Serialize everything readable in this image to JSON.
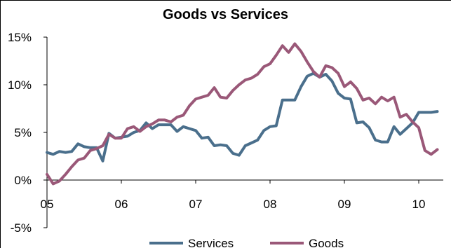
{
  "chart_data": {
    "type": "line",
    "title": "Goods vs Services",
    "xlabel": "",
    "ylabel": "",
    "ylim": [
      -5,
      15
    ],
    "y_ticks": [
      "-5%",
      "0%",
      "5%",
      "10%",
      "15%"
    ],
    "y_tick_values": [
      -5,
      0,
      5,
      10,
      15
    ],
    "x_ticks": [
      "05",
      "06",
      "07",
      "08",
      "09",
      "10"
    ],
    "x_tick_values": [
      2005,
      2006,
      2007,
      2008,
      2009,
      2010
    ],
    "x_range": [
      2005,
      2010.33
    ],
    "grid": false,
    "legend_position": "bottom",
    "colors": {
      "services": "#4a6f8c",
      "goods": "#9a5878"
    },
    "series": [
      {
        "name": "Services",
        "x": [
          2005.0,
          2005.083,
          2005.167,
          2005.25,
          2005.333,
          2005.417,
          2005.5,
          2005.583,
          2005.667,
          2005.75,
          2005.833,
          2005.917,
          2006.0,
          2006.083,
          2006.167,
          2006.25,
          2006.333,
          2006.417,
          2006.5,
          2006.583,
          2006.667,
          2006.75,
          2006.833,
          2006.917,
          2007.0,
          2007.083,
          2007.167,
          2007.25,
          2007.333,
          2007.417,
          2007.5,
          2007.583,
          2007.667,
          2007.75,
          2007.833,
          2007.917,
          2008.0,
          2008.083,
          2008.167,
          2008.25,
          2008.333,
          2008.417,
          2008.5,
          2008.583,
          2008.667,
          2008.75,
          2008.833,
          2008.917,
          2009.0,
          2009.083,
          2009.167,
          2009.25,
          2009.333,
          2009.417,
          2009.5,
          2009.583,
          2009.667,
          2009.75,
          2009.833,
          2009.917,
          2010.0,
          2010.083,
          2010.167,
          2010.25
        ],
        "values": [
          2.9,
          2.7,
          3.0,
          2.9,
          3.0,
          3.8,
          3.5,
          3.4,
          3.4,
          2.0,
          4.9,
          4.4,
          4.5,
          4.6,
          5.0,
          5.2,
          6.0,
          5.4,
          5.8,
          5.8,
          5.8,
          5.1,
          5.6,
          5.4,
          5.2,
          4.4,
          4.5,
          3.6,
          3.7,
          3.6,
          2.8,
          2.6,
          3.6,
          3.9,
          4.2,
          5.2,
          5.6,
          5.7,
          8.4,
          8.4,
          8.4,
          9.8,
          10.9,
          11.2,
          10.8,
          11.1,
          10.4,
          9.1,
          8.6,
          8.5,
          6.0,
          6.1,
          5.5,
          4.2,
          4.0,
          4.0,
          5.6,
          4.8,
          5.4,
          6.0,
          7.1,
          7.1,
          7.1,
          7.2
        ]
      },
      {
        "name": "Goods",
        "x": [
          2005.0,
          2005.083,
          2005.167,
          2005.25,
          2005.333,
          2005.417,
          2005.5,
          2005.583,
          2005.667,
          2005.75,
          2005.833,
          2005.917,
          2006.0,
          2006.083,
          2006.167,
          2006.25,
          2006.333,
          2006.417,
          2006.5,
          2006.583,
          2006.667,
          2006.75,
          2006.833,
          2006.917,
          2007.0,
          2007.083,
          2007.167,
          2007.25,
          2007.333,
          2007.417,
          2007.5,
          2007.583,
          2007.667,
          2007.75,
          2007.833,
          2007.917,
          2008.0,
          2008.083,
          2008.167,
          2008.25,
          2008.333,
          2008.417,
          2008.5,
          2008.583,
          2008.667,
          2008.75,
          2008.833,
          2008.917,
          2009.0,
          2009.083,
          2009.167,
          2009.25,
          2009.333,
          2009.417,
          2009.5,
          2009.583,
          2009.667,
          2009.75,
          2009.833,
          2009.917,
          2010.0,
          2010.083,
          2010.167,
          2010.25
        ],
        "values": [
          0.6,
          -0.4,
          -0.1,
          0.6,
          1.4,
          2.1,
          2.3,
          3.1,
          3.3,
          3.6,
          4.8,
          4.4,
          4.4,
          5.4,
          5.6,
          5.1,
          5.6,
          5.9,
          6.3,
          6.3,
          6.1,
          6.6,
          6.8,
          7.8,
          8.5,
          8.7,
          8.9,
          9.7,
          8.7,
          8.6,
          9.4,
          10.0,
          10.5,
          10.7,
          11.1,
          11.9,
          12.2,
          13.1,
          14.1,
          13.4,
          14.3,
          13.5,
          12.4,
          11.4,
          10.8,
          12.0,
          11.8,
          11.2,
          9.8,
          10.3,
          9.6,
          8.4,
          8.6,
          8.0,
          8.7,
          8.3,
          8.7,
          6.6,
          6.9,
          6.1,
          5.5,
          3.1,
          2.7,
          3.2
        ]
      }
    ]
  }
}
